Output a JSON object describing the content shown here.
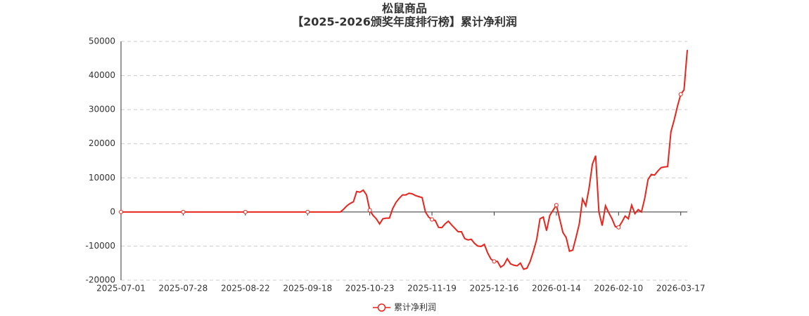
{
  "chart_data": {
    "type": "line",
    "title": "松鼠商品",
    "subtitle": "【2025-2026颁奖年度排行榜】累计净利润",
    "categories": [
      "2025-07-01",
      null,
      null,
      null,
      null,
      null,
      null,
      null,
      null,
      null,
      null,
      null,
      null,
      null,
      null,
      null,
      null,
      null,
      null,
      "2025-07-28",
      null,
      null,
      null,
      null,
      null,
      null,
      null,
      null,
      null,
      null,
      null,
      null,
      null,
      null,
      null,
      null,
      null,
      null,
      "2025-08-22",
      null,
      null,
      null,
      null,
      null,
      null,
      null,
      null,
      null,
      null,
      null,
      null,
      null,
      null,
      null,
      null,
      null,
      null,
      "2025-09-18",
      null,
      null,
      null,
      null,
      null,
      null,
      null,
      null,
      null,
      null,
      null,
      null,
      null,
      null,
      null,
      null,
      null,
      null,
      "2025-10-23",
      null,
      null,
      null,
      null,
      null,
      null,
      null,
      null,
      null,
      null,
      null,
      null,
      null,
      null,
      null,
      null,
      null,
      null,
      "2025-11-19",
      null,
      null,
      null,
      null,
      null,
      null,
      null,
      null,
      null,
      null,
      null,
      null,
      null,
      null,
      null,
      null,
      null,
      null,
      "2025-12-16",
      null,
      null,
      null,
      null,
      null,
      null,
      null,
      null,
      null,
      null,
      null,
      null,
      null,
      null,
      null,
      null,
      null,
      null,
      "2026-01-14",
      null,
      null,
      null,
      null,
      null,
      null,
      null,
      null,
      null,
      null,
      null,
      null,
      null,
      null,
      null,
      null,
      null,
      null,
      "2026-02-10",
      null,
      null,
      null,
      null,
      null,
      null,
      null,
      null,
      null,
      null,
      null,
      null,
      null,
      null,
      null,
      null,
      null,
      null,
      "2026-03-17",
      null,
      null
    ],
    "series": [
      {
        "name": "累计净利润",
        "color": "#e8251c",
        "values": [
          0,
          0,
          0,
          0,
          0,
          0,
          0,
          0,
          0,
          0,
          0,
          0,
          0,
          0,
          0,
          0,
          0,
          0,
          0,
          0,
          0,
          0,
          0,
          0,
          0,
          0,
          0,
          0,
          0,
          0,
          0,
          0,
          0,
          0,
          0,
          0,
          0,
          0,
          0,
          0,
          0,
          0,
          0,
          0,
          0,
          0,
          0,
          0,
          0,
          0,
          0,
          0,
          0,
          0,
          0,
          0,
          0,
          0,
          0,
          0,
          0,
          0,
          0,
          0,
          0,
          0,
          0,
          0,
          800,
          1800,
          2500,
          3000,
          6000,
          5800,
          6400,
          5000,
          500,
          -1000,
          -2000,
          -3500,
          -2000,
          -1800,
          -1800,
          1000,
          2800,
          4000,
          5000,
          5000,
          5500,
          5300,
          4800,
          4500,
          4200,
          0,
          -1500,
          -2200,
          -2500,
          -4500,
          -4600,
          -3500,
          -2700,
          -3800,
          -4800,
          -5800,
          -5800,
          -7800,
          -8200,
          -8000,
          -9200,
          -10000,
          -10100,
          -9500,
          -12000,
          -13800,
          -14500,
          -14500,
          -16200,
          -15500,
          -13700,
          -15200,
          -15600,
          -15800,
          -15000,
          -16800,
          -16500,
          -14500,
          -11500,
          -8000,
          -2000,
          -1500,
          -5500,
          -1000,
          500,
          2000,
          -2000,
          -6000,
          -7500,
          -11500,
          -11200,
          -7500,
          -3500,
          3800,
          1800,
          7000,
          14000,
          16500,
          0,
          -4000,
          1800,
          -200,
          -2000,
          -4300,
          -4500,
          -3000,
          -1200,
          -2000,
          2000,
          -500,
          700,
          0,
          4000,
          9500,
          11000,
          10800,
          12000,
          13000,
          13200,
          13300,
          23500,
          27000,
          31000,
          34500,
          35800,
          47500
        ]
      }
    ],
    "ylim": [
      -20000,
      50000
    ],
    "yticks": [
      -20000,
      -10000,
      0,
      10000,
      20000,
      30000,
      40000,
      50000
    ],
    "grid": true,
    "legend": "bottom"
  }
}
